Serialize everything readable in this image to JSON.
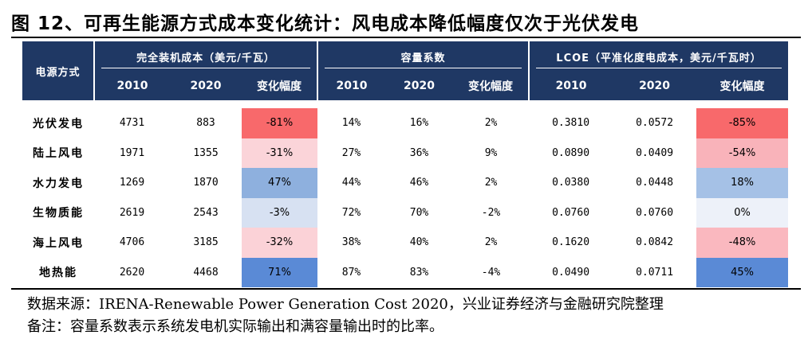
{
  "title": "图 12、可再生能源方式成本变化统计：风电成本降低幅度仅次于光伏发电",
  "table": {
    "row_header": "电源方式",
    "groups": [
      {
        "label": "完全装机成本（美元/千瓦）",
        "columns": [
          "2010",
          "2020",
          "变化幅度"
        ]
      },
      {
        "label": "容量系数",
        "columns": [
          "2010",
          "2020",
          "变化幅度"
        ]
      },
      {
        "label": "LCOE（平准化度电成本，美元/千瓦时）",
        "columns": [
          "2010",
          "2020",
          "变化幅度"
        ]
      }
    ],
    "rows": [
      {
        "name": "光伏发电",
        "cells": [
          "4731",
          "883",
          "-81%",
          "14%",
          "16%",
          "2%",
          "0.3810",
          "0.0572",
          "-85%"
        ]
      },
      {
        "name": "陆上风电",
        "cells": [
          "1971",
          "1355",
          "-31%",
          "27%",
          "36%",
          "9%",
          "0.0890",
          "0.0409",
          "-54%"
        ]
      },
      {
        "name": "水力发电",
        "cells": [
          "1269",
          "1870",
          "47%",
          "44%",
          "46%",
          "2%",
          "0.0380",
          "0.0448",
          "18%"
        ]
      },
      {
        "name": "生物质能",
        "cells": [
          "2619",
          "2543",
          "-3%",
          "72%",
          "70%",
          "-2%",
          "0.0760",
          "0.0760",
          "0%"
        ]
      },
      {
        "name": "海上风电",
        "cells": [
          "4706",
          "3185",
          "-32%",
          "38%",
          "40%",
          "2%",
          "0.1620",
          "0.0842",
          "-48%"
        ]
      },
      {
        "name": "地热能",
        "cells": [
          "2620",
          "4468",
          "71%",
          "87%",
          "83%",
          "-4%",
          "0.0490",
          "0.0711",
          "45%"
        ]
      }
    ],
    "highlight_colors": {
      "cost_change": [
        "#f8696b",
        "#fbd4d9",
        "#8eb0de",
        "#d7e1f2",
        "#fbd2d7",
        "#5a8ad6"
      ],
      "lcoe_change": [
        "#f8696b",
        "#f9b3ba",
        "#a5c1e6",
        "#edf1f9",
        "#fab8bf",
        "#5a8ad6"
      ]
    },
    "header_color": "#1f3864"
  },
  "source": "数据来源：IRENA-Renewable Power Generation Cost 2020，兴业证券经济与金融研究院整理",
  "note": "备注：容量系数表示系统发电机实际输出和满容量输出时的比率。"
}
